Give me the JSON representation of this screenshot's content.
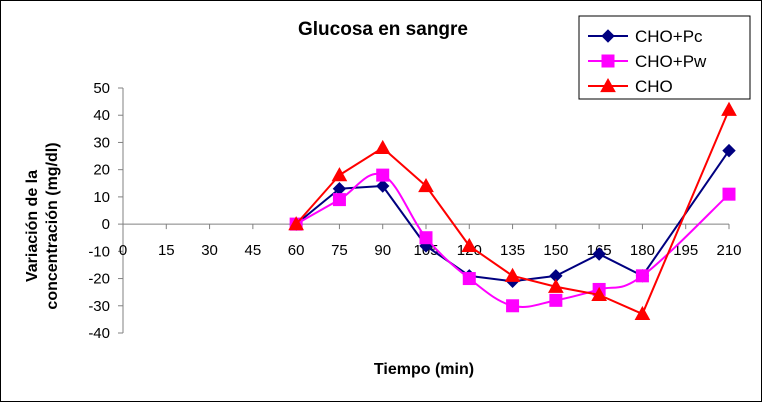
{
  "chart_data": {
    "type": "line",
    "title": "Glucosa en sangre",
    "xlabel": "Tiempo (min)",
    "ylabel_lines": [
      "Variación de la",
      "concentración (mg/dl)"
    ],
    "categories": [
      "0",
      "15",
      "30",
      "45",
      "60",
      "75",
      "90",
      "105",
      "120",
      "135",
      "150",
      "165",
      "180",
      "195",
      "210"
    ],
    "ylim": [
      -40,
      50
    ],
    "yticks": [
      50,
      40,
      30,
      20,
      10,
      0,
      -10,
      -20,
      -30,
      -40
    ],
    "yticklabels": [
      "50",
      "40",
      "30",
      "20",
      "10",
      "0",
      "-10",
      "-20",
      "-30",
      "-40"
    ],
    "grid": false,
    "legend_position": "top-right",
    "series": [
      {
        "name": "CHO+Pc",
        "color": "#000080",
        "marker": "diamond",
        "smooth": false,
        "x": [
          60,
          75,
          90,
          105,
          120,
          135,
          150,
          165,
          180,
          210
        ],
        "values": [
          0,
          13,
          14,
          -8,
          -19,
          -21,
          -19,
          -11,
          -19,
          27
        ]
      },
      {
        "name": "CHO+Pw",
        "color": "#FF00FF",
        "marker": "square",
        "smooth": true,
        "x": [
          60,
          75,
          90,
          105,
          120,
          135,
          150,
          165,
          180,
          210
        ],
        "values": [
          0,
          9,
          18,
          -5,
          -20,
          -30,
          -28,
          -24,
          -19,
          11
        ]
      },
      {
        "name": "CHO",
        "color": "#FF0000",
        "marker": "triangle",
        "smooth": false,
        "x": [
          60,
          75,
          90,
          105,
          120,
          135,
          150,
          165,
          180,
          210
        ],
        "values": [
          0,
          18,
          28,
          14,
          -8,
          -19,
          -23,
          -26,
          -33,
          42
        ]
      }
    ]
  }
}
